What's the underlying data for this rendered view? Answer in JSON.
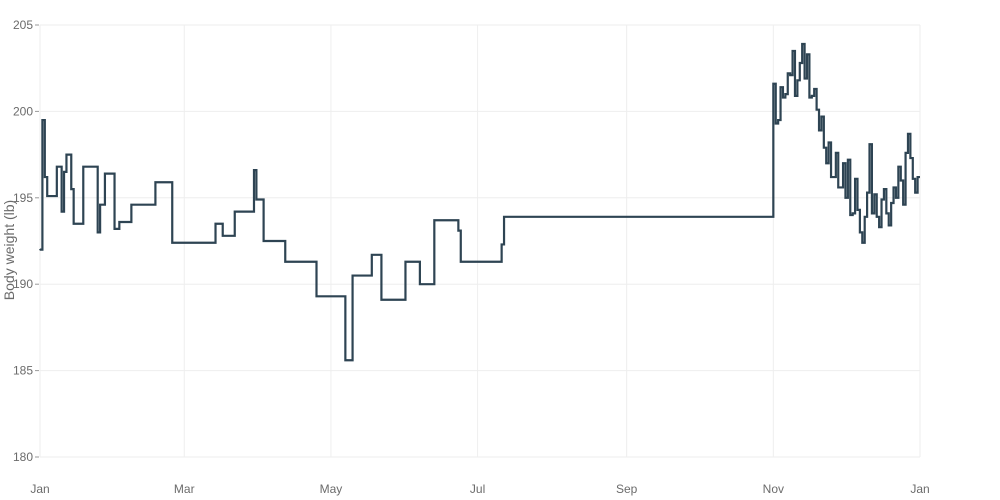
{
  "chart_data": {
    "type": "line",
    "line_shape": "step",
    "title": "",
    "xlabel": "",
    "ylabel": "Body weight (lb)",
    "ylim": [
      180,
      205
    ],
    "xlim": [
      "2020-01-01",
      "2021-01-01"
    ],
    "grid": true,
    "legend": "none",
    "line_color": "#2e4453",
    "y_ticks": [
      180,
      185,
      190,
      195,
      200,
      205
    ],
    "y_tick_labels": [
      "180",
      "185",
      "190",
      "195",
      "200",
      "205"
    ],
    "x_ticks": [
      "2020-01-01",
      "2020-03-01",
      "2020-05-01",
      "2020-07-01",
      "2020-09-01",
      "2020-11-01",
      "2021-01-01"
    ],
    "x_tick_labels": [
      "Jan",
      "Mar",
      "May",
      "Jul",
      "Sep",
      "Nov",
      "Jan"
    ],
    "series": [
      {
        "x": [
          "2020-01-01",
          "2020-01-02",
          "2020-01-03",
          "2020-01-04",
          "2020-01-06",
          "2020-01-08",
          "2020-01-10",
          "2020-01-11",
          "2020-01-12",
          "2020-01-14",
          "2020-01-15",
          "2020-01-17",
          "2020-01-19",
          "2020-01-20",
          "2020-01-25",
          "2020-01-26",
          "2020-01-27",
          "2020-01-28",
          "2020-02-01",
          "2020-02-03",
          "2020-02-08",
          "2020-02-15",
          "2020-02-16",
          "2020-02-18",
          "2020-02-25",
          "2020-03-14",
          "2020-03-17",
          "2020-03-22",
          "2020-03-23",
          "2020-03-24",
          "2020-03-30",
          "2020-03-31",
          "2020-04-02",
          "2020-04-03",
          "2020-04-04",
          "2020-04-12",
          "2020-04-25",
          "2020-04-30",
          "2020-05-07",
          "2020-05-08",
          "2020-05-10",
          "2020-05-11",
          "2020-05-12",
          "2020-05-18",
          "2020-05-22",
          "2020-05-25",
          "2020-05-30",
          "2020-06-01",
          "2020-06-06",
          "2020-06-07",
          "2020-06-13",
          "2020-06-23",
          "2020-06-24",
          "2020-06-27",
          "2020-06-30",
          "2020-07-02",
          "2020-07-10",
          "2020-07-11",
          "2020-07-12",
          "2020-11-01",
          "2020-11-02",
          "2020-11-03",
          "2020-11-04",
          "2020-11-05",
          "2020-11-06",
          "2020-11-07",
          "2020-11-08",
          "2020-11-09",
          "2020-11-10",
          "2020-11-11",
          "2020-11-12",
          "2020-11-13",
          "2020-11-14",
          "2020-11-15",
          "2020-11-16",
          "2020-11-17",
          "2020-11-18",
          "2020-11-19",
          "2020-11-20",
          "2020-11-21",
          "2020-11-22",
          "2020-11-23",
          "2020-11-24",
          "2020-11-25",
          "2020-11-26",
          "2020-11-27",
          "2020-11-28",
          "2020-11-29",
          "2020-11-30",
          "2020-12-01",
          "2020-12-02",
          "2020-12-03",
          "2020-12-04",
          "2020-12-05",
          "2020-12-06",
          "2020-12-07",
          "2020-12-08",
          "2020-12-09",
          "2020-12-10",
          "2020-12-11",
          "2020-12-12",
          "2020-12-13",
          "2020-12-14",
          "2020-12-15",
          "2020-12-16",
          "2020-12-17",
          "2020-12-18",
          "2020-12-19",
          "2020-12-20",
          "2020-12-21",
          "2020-12-22",
          "2020-12-23",
          "2020-12-24",
          "2020-12-25",
          "2020-12-26",
          "2020-12-27",
          "2020-12-28",
          "2020-12-29",
          "2020-12-30",
          "2020-12-31"
        ],
        "y": [
          192.0,
          199.5,
          196.2,
          195.1,
          195.1,
          196.8,
          194.2,
          196.5,
          197.5,
          195.5,
          193.5,
          193.5,
          196.8,
          196.8,
          193.0,
          194.6,
          194.6,
          196.4,
          193.2,
          193.6,
          194.6,
          194.6,
          194.6,
          195.9,
          192.4,
          193.5,
          192.8,
          194.2,
          194.2,
          194.2,
          196.6,
          194.9,
          194.9,
          192.5,
          192.5,
          191.3,
          189.3,
          189.3,
          185.6,
          185.6,
          190.5,
          190.5,
          190.5,
          191.7,
          189.1,
          189.1,
          189.1,
          191.3,
          191.3,
          190.0,
          193.7,
          193.1,
          191.3,
          191.3,
          191.3,
          191.3,
          191.3,
          192.3,
          193.9,
          201.6,
          199.3,
          199.5,
          201.4,
          200.8,
          201.0,
          202.2,
          202.1,
          203.5,
          200.9,
          201.8,
          202.8,
          203.9,
          201.9,
          203.3,
          200.8,
          200.9,
          201.3,
          200.1,
          198.9,
          199.7,
          197.9,
          197.0,
          198.2,
          196.2,
          196.2,
          197.6,
          195.6,
          195.6,
          197.0,
          195.0,
          197.2,
          194.0,
          194.1,
          196.1,
          194.3,
          193.0,
          192.4,
          193.9,
          195.3,
          198.1,
          194.1,
          195.2,
          193.9,
          193.3,
          194.9,
          195.5,
          194.1,
          193.4,
          194.7,
          195.6,
          195.0,
          196.8,
          196.0,
          194.6,
          197.6,
          198.7,
          197.3,
          196.1,
          195.3,
          196.2
        ]
      }
    ]
  }
}
